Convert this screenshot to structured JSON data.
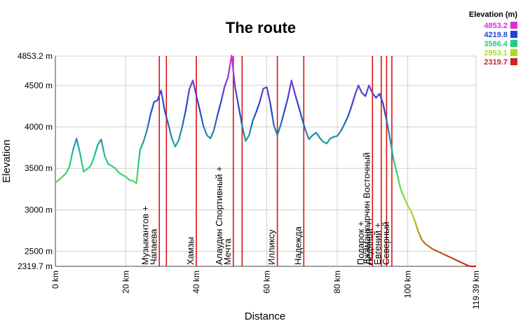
{
  "chart_data": {
    "type": "line",
    "title": "The route",
    "xlabel": "Distance",
    "ylabel": "Elevation",
    "xlim": [
      0,
      119.39
    ],
    "ylim": [
      2319.7,
      4853.2
    ],
    "grid": true,
    "x_ticks": [
      {
        "value": 0,
        "label": "0 km"
      },
      {
        "value": 20,
        "label": "20 km"
      },
      {
        "value": 40,
        "label": "40 km"
      },
      {
        "value": 60,
        "label": "60 km"
      },
      {
        "value": 80,
        "label": "80 km"
      },
      {
        "value": 100,
        "label": "100 km"
      },
      {
        "value": 119.39,
        "label": "119.39 km"
      }
    ],
    "y_ticks": [
      {
        "value": 2319.7,
        "label": "2319.7 m"
      },
      {
        "value": 2500,
        "label": "2500 m"
      },
      {
        "value": 3000,
        "label": "3000 m"
      },
      {
        "value": 3500,
        "label": "3500 m"
      },
      {
        "value": 4000,
        "label": "4000 m"
      },
      {
        "value": 4500,
        "label": "4500 m"
      },
      {
        "value": 4853.2,
        "label": "4853.2 m"
      }
    ],
    "legend": {
      "title": "Elevation (m)",
      "placement": "top-right",
      "entries": [
        {
          "label": "4853.2",
          "color": "#d633d6"
        },
        {
          "label": "4219.8",
          "color": "#2244cc"
        },
        {
          "label": "3586.4",
          "color": "#22cc88"
        },
        {
          "label": "2953.1",
          "color": "#aadd22"
        },
        {
          "label": "2319.7",
          "color": "#cc2222"
        }
      ]
    },
    "series": [
      {
        "x": [
          0,
          1,
          2,
          3,
          4,
          5,
          6,
          7,
          8,
          9,
          10,
          11,
          12,
          13,
          14,
          15,
          16,
          17,
          18,
          19,
          20,
          21,
          22,
          23,
          24,
          25,
          26,
          27,
          28,
          29,
          30,
          31,
          32,
          33,
          34,
          35,
          36,
          37,
          38,
          39,
          40,
          41,
          42,
          43,
          44,
          45,
          46,
          47,
          48,
          49,
          50,
          51,
          52,
          53,
          54,
          55,
          56,
          57,
          58,
          59,
          60,
          61,
          62,
          63,
          64,
          65,
          66,
          67,
          68,
          69,
          70,
          71,
          72,
          73,
          74,
          75,
          76,
          77,
          78,
          79,
          80,
          81,
          82,
          83,
          84,
          85,
          86,
          87,
          88,
          89,
          90,
          91,
          92,
          93,
          94,
          95,
          96,
          97,
          98,
          99,
          100,
          101,
          102,
          103,
          104,
          105,
          106,
          107,
          108,
          109,
          110,
          111,
          112,
          113,
          114,
          115,
          116,
          117,
          118,
          119.39
        ],
        "y": [
          3330,
          3360,
          3400,
          3440,
          3520,
          3720,
          3860,
          3680,
          3460,
          3490,
          3530,
          3640,
          3780,
          3850,
          3650,
          3550,
          3530,
          3500,
          3450,
          3420,
          3400,
          3360,
          3350,
          3320,
          3720,
          3820,
          3960,
          4150,
          4300,
          4320,
          4440,
          4200,
          4040,
          3870,
          3760,
          3840,
          4000,
          4200,
          4450,
          4560,
          4380,
          4200,
          4010,
          3900,
          3860,
          3960,
          4140,
          4300,
          4480,
          4600,
          4860,
          4480,
          4250,
          4010,
          3830,
          3900,
          4070,
          4180,
          4300,
          4460,
          4480,
          4280,
          4020,
          3900,
          4030,
          4190,
          4350,
          4560,
          4400,
          4250,
          4100,
          3960,
          3850,
          3900,
          3930,
          3870,
          3820,
          3800,
          3860,
          3880,
          3890,
          3950,
          4030,
          4120,
          4240,
          4380,
          4500,
          4410,
          4370,
          4500,
          4410,
          4350,
          4400,
          4280,
          4080,
          3850,
          3600,
          3430,
          3250,
          3150,
          3050,
          2980,
          2870,
          2740,
          2640,
          2590,
          2560,
          2530,
          2510,
          2490,
          2470,
          2450,
          2430,
          2410,
          2390,
          2370,
          2350,
          2330,
          2320,
          2319.7
        ]
      }
    ],
    "passes": [
      {
        "x": 29.5,
        "label": "Музыкантов +\nЧапаева"
      },
      {
        "x": 31.5,
        "label": ""
      },
      {
        "x": 40.0,
        "label": "Хамзы"
      },
      {
        "x": 50.5,
        "label": "Алаудин Спортивный +\nМечта"
      },
      {
        "x": 53.0,
        "label": ""
      },
      {
        "x": 63.0,
        "label": "Илликсу"
      },
      {
        "x": 70.5,
        "label": "Надежда"
      },
      {
        "x": 90.0,
        "label": "Джаманкырчин Восточный"
      },
      {
        "x": 92.5,
        "label": ""
      },
      {
        "x": 94.0,
        "label": ""
      },
      {
        "x": 95.5,
        "label": "Подарок +\nЛедяной +\nЕвгений +\nСеверный"
      }
    ]
  }
}
